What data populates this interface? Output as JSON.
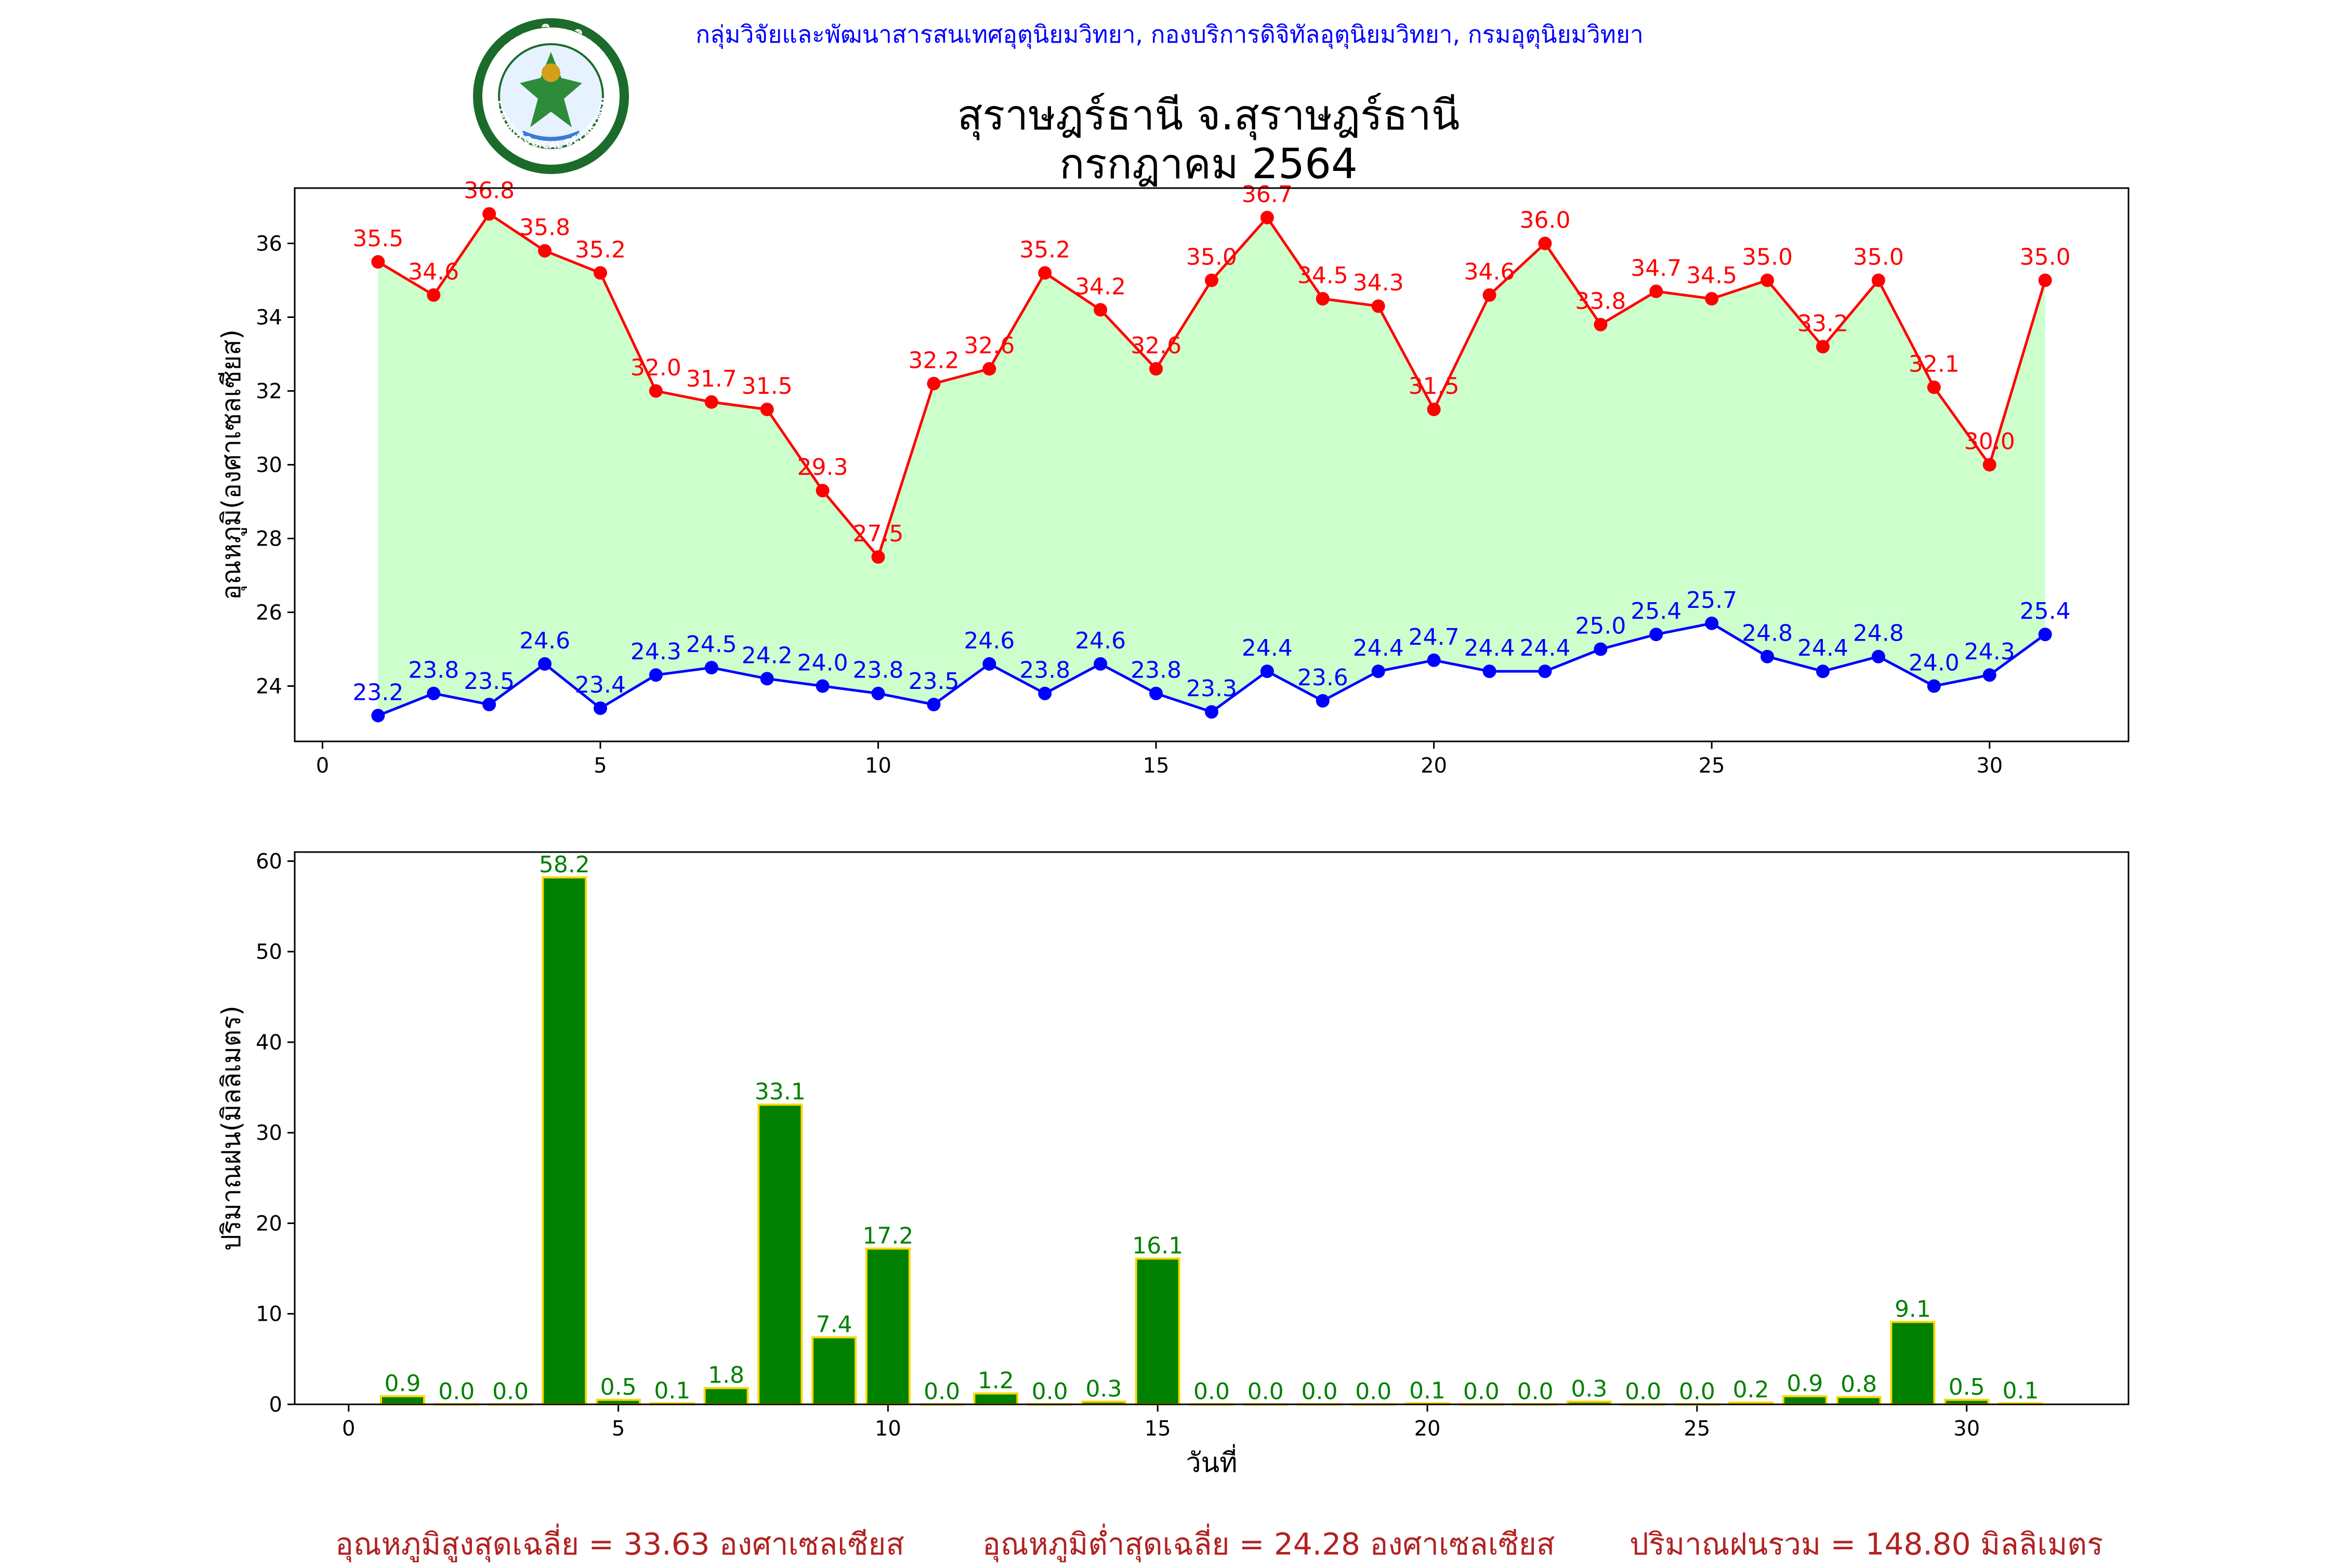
{
  "header": {
    "org_line": "กลุ่มวิจัยและพัฒนาสารสนเทศอุตุนิยมวิทยา, กองบริการดิจิทัลอุตุนิยมวิทยา, กรมอุตุนิยมวิทยา",
    "title_line1": "สุราษฎร์ธานี จ.สุราษฎร์ธานี",
    "title_line2": "กรกฎาคม 2564",
    "logo_text_top": "กรมอุตุนิยมวิทยา",
    "logo_text_bottom": "METEOROLOGICAL DEPARTMENT"
  },
  "colors": {
    "org_line": "#0000ff",
    "max_line": "#ff0000",
    "min_line": "#0000ff",
    "fill": "#ccffcc",
    "bar_fill": "#008000",
    "bar_edge": "#ffd700",
    "bar_label": "#008000",
    "footer": "#b22222"
  },
  "chart_data": [
    {
      "type": "line",
      "ylabel": "อุณหภูมิ(องศาเซลเซียส)",
      "xlim": [
        -0.5,
        32.5
      ],
      "ylim": [
        22.5,
        37.5
      ],
      "xticks": [
        0,
        5,
        10,
        15,
        20,
        25,
        30
      ],
      "yticks": [
        24,
        26,
        28,
        30,
        32,
        34,
        36
      ],
      "x": [
        1,
        2,
        3,
        4,
        5,
        6,
        7,
        8,
        9,
        10,
        11,
        12,
        13,
        14,
        15,
        16,
        17,
        18,
        19,
        20,
        21,
        22,
        23,
        24,
        25,
        26,
        27,
        28,
        29,
        30,
        31
      ],
      "fill_between": true,
      "series": [
        {
          "values": [
            35.5,
            34.6,
            36.8,
            35.8,
            35.2,
            32.0,
            31.7,
            31.5,
            29.3,
            27.5,
            32.2,
            32.6,
            35.2,
            34.2,
            32.6,
            35.0,
            36.7,
            34.5,
            34.3,
            31.5,
            34.6,
            36.0,
            33.8,
            34.7,
            34.5,
            35.0,
            33.2,
            35.0,
            32.1,
            30.0,
            35.0
          ]
        },
        {
          "values": [
            23.2,
            23.8,
            23.5,
            24.6,
            23.4,
            24.3,
            24.5,
            24.2,
            24.0,
            23.8,
            23.5,
            24.6,
            23.8,
            24.6,
            23.8,
            23.3,
            24.4,
            23.6,
            24.4,
            24.7,
            24.4,
            24.4,
            25.0,
            25.4,
            25.7,
            24.8,
            24.4,
            24.8,
            24.0,
            24.3,
            25.4
          ]
        }
      ]
    },
    {
      "type": "bar",
      "xlabel": "วันที่",
      "ylabel": "ปริมาณฝน(มิลลิเมตร)",
      "xlim": [
        -1,
        33
      ],
      "ylim": [
        0,
        61
      ],
      "xticks": [
        0,
        5,
        10,
        15,
        20,
        25,
        30
      ],
      "yticks": [
        0,
        10,
        20,
        30,
        40,
        50,
        60
      ],
      "categories": [
        1,
        2,
        3,
        4,
        5,
        6,
        7,
        8,
        9,
        10,
        11,
        12,
        13,
        14,
        15,
        16,
        17,
        18,
        19,
        20,
        21,
        22,
        23,
        24,
        25,
        26,
        27,
        28,
        29,
        30,
        31
      ],
      "values": [
        0.9,
        0.0,
        0.0,
        58.2,
        0.5,
        0.1,
        1.8,
        33.1,
        7.4,
        17.2,
        0.0,
        1.2,
        0.0,
        0.3,
        16.1,
        0.0,
        0.0,
        0.0,
        0.0,
        0.1,
        0.0,
        0.0,
        0.3,
        0.0,
        0.0,
        0.2,
        0.9,
        0.8,
        9.1,
        0.5,
        0.1
      ]
    }
  ],
  "footer": {
    "avg_max": "อุณหภูมิสูงสุดเฉลี่ย = 33.63 องศาเซลเซียส",
    "avg_min": "อุณหภูมิต่ำสุดเฉลี่ย = 24.28 องศาเซลเซียส",
    "rain_total": "ปริมาณฝนรวม = 148.80 มิลลิเมตร"
  }
}
